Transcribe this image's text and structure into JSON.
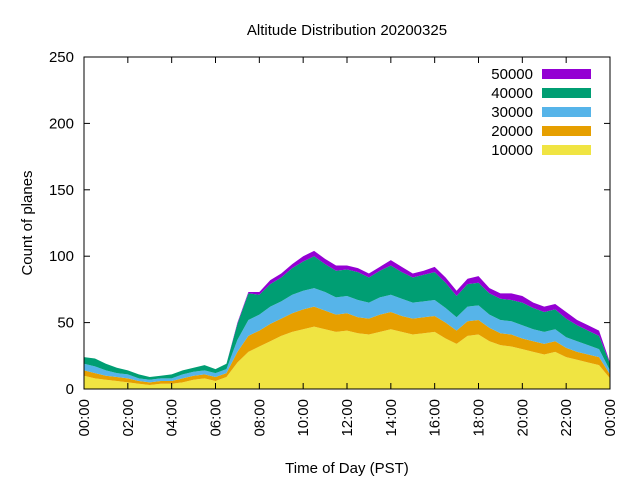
{
  "chart_data": {
    "type": "area",
    "stacked": true,
    "title": "Altitude Distribution 20200325",
    "xlabel": "Time of Day (PST)",
    "ylabel": "Count of planes",
    "xlim": [
      0,
      24
    ],
    "ylim": [
      0,
      250
    ],
    "yticks": [
      0,
      50,
      100,
      150,
      200,
      250
    ],
    "xtick_labels": [
      "00:00",
      "02:00",
      "04:00",
      "06:00",
      "08:00",
      "10:00",
      "12:00",
      "14:00",
      "16:00",
      "18:00",
      "20:00",
      "22:00",
      "00:00"
    ],
    "legend_position": "top-right",
    "grid": false,
    "x": [
      0,
      0.5,
      1,
      1.5,
      2,
      2.5,
      3,
      3.5,
      4,
      4.5,
      5,
      5.5,
      6,
      6.5,
      7,
      7.5,
      8,
      8.5,
      9,
      9.5,
      10,
      10.5,
      11,
      11.5,
      12,
      12.5,
      13,
      13.5,
      14,
      14.5,
      15,
      15.5,
      16,
      16.5,
      17,
      17.5,
      18,
      18.5,
      19,
      19.5,
      20,
      20.5,
      21,
      21.5,
      22,
      22.5,
      23,
      23.5,
      24
    ],
    "series": [
      {
        "name": "10000",
        "color": "#f0e442",
        "values": [
          10,
          8,
          7,
          6,
          5,
          4,
          3,
          4,
          4,
          5,
          7,
          8,
          6,
          9,
          20,
          28,
          32,
          36,
          40,
          43,
          45,
          47,
          45,
          43,
          44,
          42,
          41,
          43,
          45,
          43,
          41,
          42,
          43,
          38,
          34,
          40,
          41,
          36,
          33,
          32,
          30,
          28,
          26,
          28,
          24,
          22,
          20,
          18,
          8
        ]
      },
      {
        "name": "20000",
        "color": "#e69f00",
        "values": [
          4,
          4,
          3,
          3,
          3,
          2,
          2,
          2,
          2,
          3,
          3,
          3,
          3,
          3,
          8,
          12,
          12,
          13,
          13,
          14,
          15,
          15,
          14,
          13,
          13,
          12,
          12,
          13,
          13,
          12,
          12,
          12,
          12,
          12,
          10,
          11,
          11,
          10,
          9,
          9,
          8,
          8,
          8,
          8,
          7,
          6,
          6,
          6,
          3
        ]
      },
      {
        "name": "30000",
        "color": "#56b4e9",
        "values": [
          5,
          5,
          4,
          3,
          3,
          2,
          2,
          2,
          2,
          3,
          3,
          3,
          3,
          3,
          9,
          12,
          12,
          13,
          13,
          14,
          14,
          14,
          14,
          13,
          13,
          13,
          12,
          13,
          13,
          13,
          12,
          12,
          12,
          11,
          10,
          11,
          11,
          10,
          10,
          10,
          10,
          9,
          9,
          9,
          8,
          8,
          7,
          6,
          3
        ]
      },
      {
        "name": "40000",
        "color": "#009e73",
        "values": [
          5,
          6,
          5,
          4,
          3,
          3,
          2,
          2,
          3,
          3,
          3,
          4,
          3,
          4,
          12,
          20,
          15,
          17,
          18,
          20,
          22,
          24,
          21,
          20,
          20,
          21,
          19,
          20,
          22,
          20,
          19,
          20,
          21,
          19,
          16,
          17,
          17,
          16,
          16,
          16,
          17,
          16,
          15,
          15,
          14,
          12,
          11,
          10,
          5
        ]
      },
      {
        "name": "50000",
        "color": "#9400d3",
        "values": [
          0,
          0,
          0,
          0,
          0,
          0,
          0,
          0,
          0,
          0,
          0,
          0,
          0,
          0,
          1,
          1,
          2,
          3,
          3,
          3,
          4,
          4,
          4,
          4,
          3,
          3,
          3,
          3,
          4,
          4,
          3,
          3,
          4,
          4,
          4,
          4,
          5,
          4,
          4,
          5,
          5,
          4,
          4,
          4,
          5,
          4,
          4,
          4,
          1
        ]
      }
    ]
  }
}
